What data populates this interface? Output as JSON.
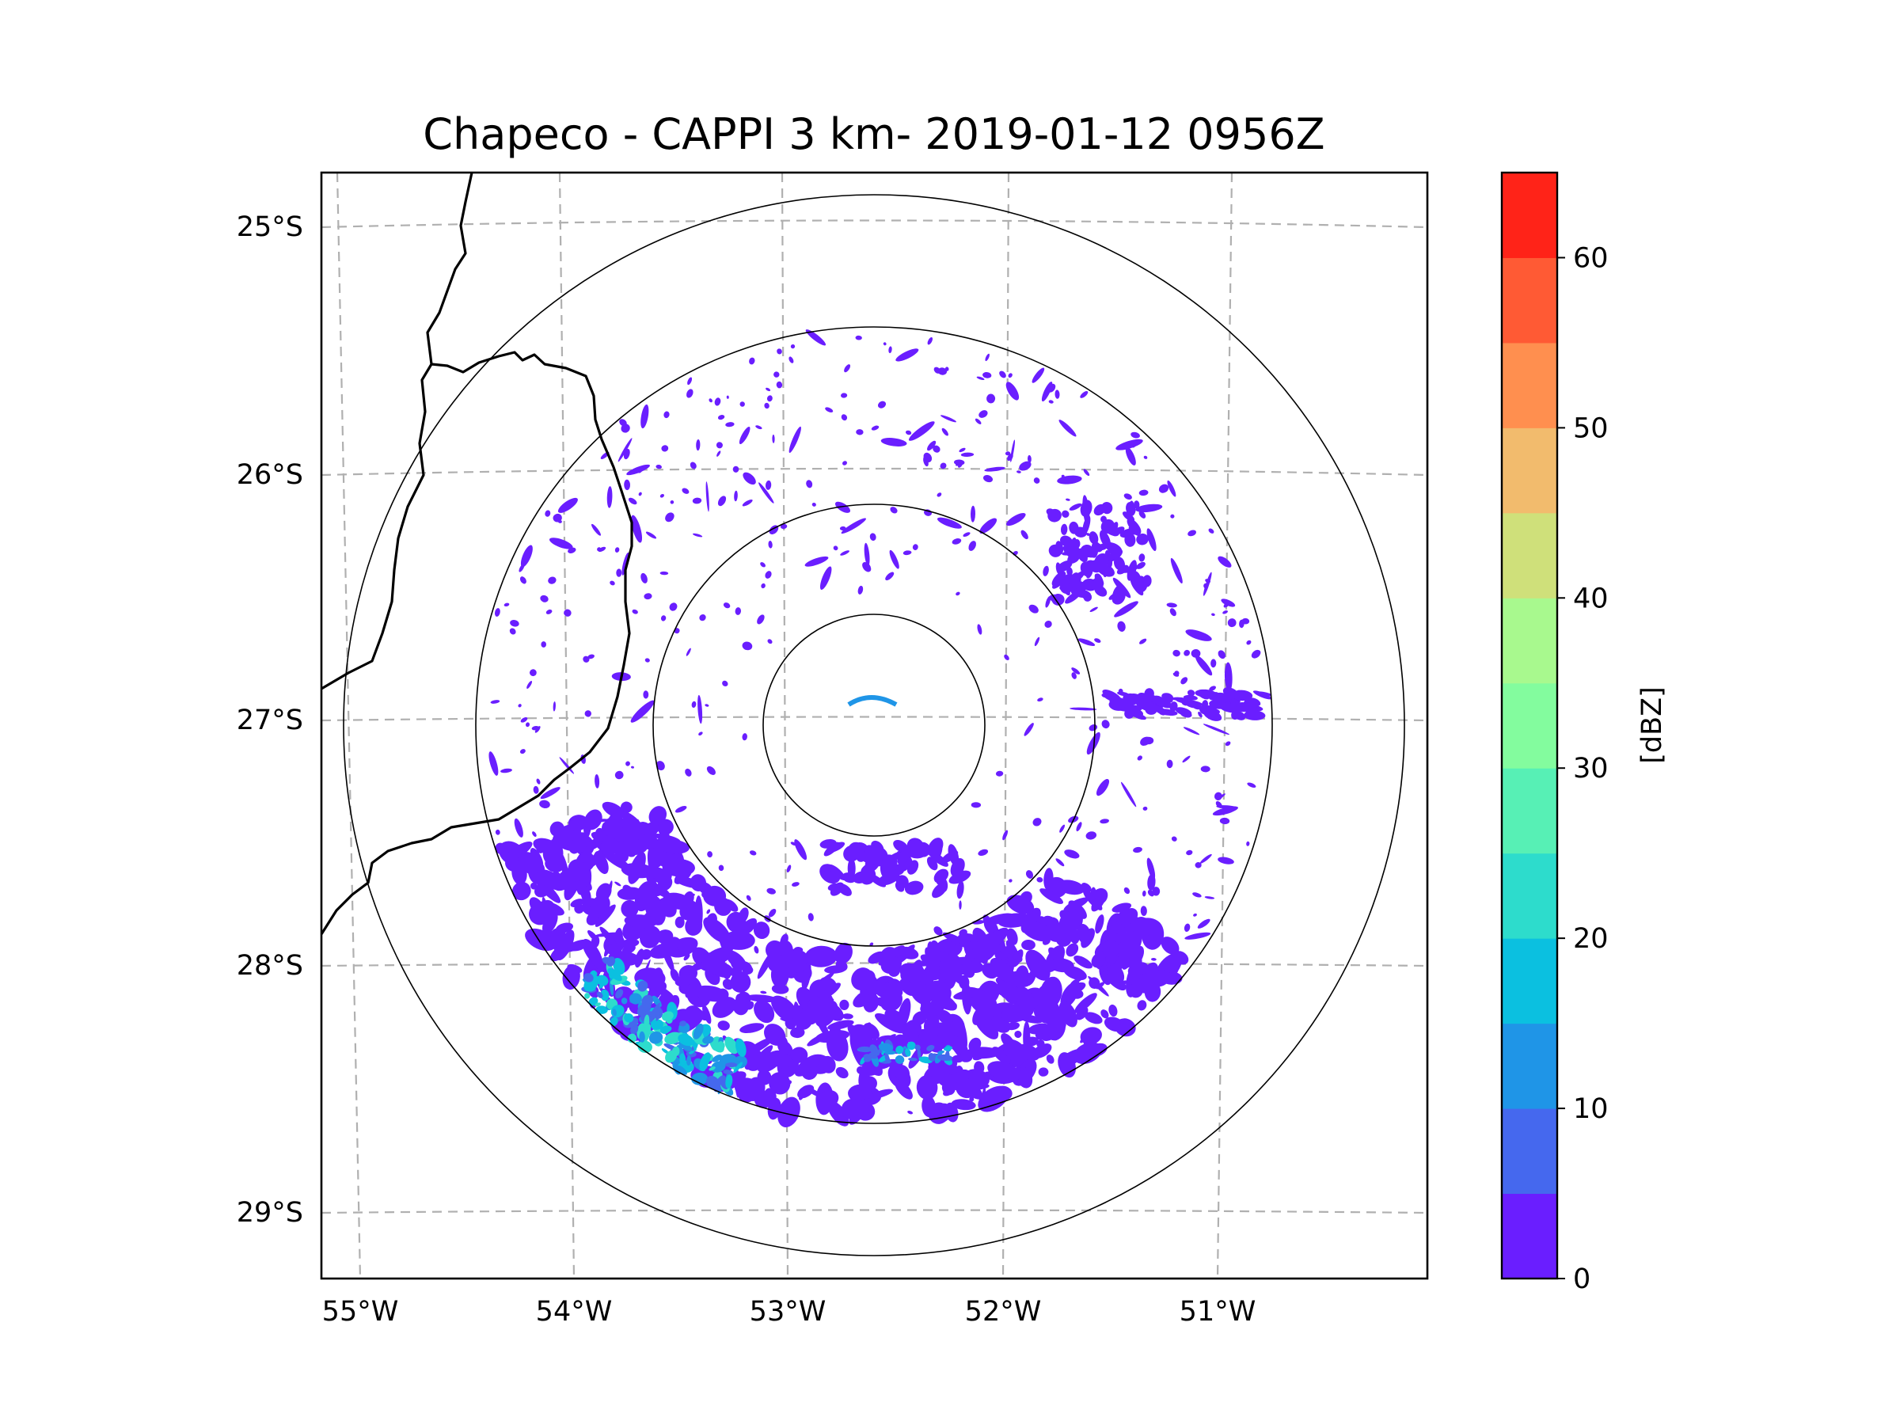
{
  "title": "Chapeco - CAPPI 3 km- 2019-01-12 0956Z",
  "chart_data": {
    "type": "radar-ppi-map",
    "title": "Chapeco - CAPPI 3 km- 2019-01-12 0956Z",
    "radar_site": "Chapeco",
    "product": "CAPPI 3 km",
    "datetime": "2019-01-12 0956Z",
    "lat_ticks": [
      "25°S",
      "26°S",
      "27°S",
      "28°S",
      "29°S"
    ],
    "lon_ticks": [
      "55°W",
      "54°W",
      "53°W",
      "52°W",
      "51°W"
    ],
    "lat_range": [
      -29.3,
      -24.8
    ],
    "lon_range": [
      -55.2,
      -50.0
    ],
    "range_rings_km": [
      50,
      100,
      200,
      250
    ],
    "grid": true,
    "colorbar": {
      "label": "[dBZ]",
      "ticks": [
        0,
        10,
        20,
        30,
        40,
        50,
        60
      ],
      "bounds": [
        0,
        5,
        10,
        15,
        20,
        25,
        30,
        35,
        40,
        45,
        50,
        55,
        60,
        65
      ],
      "colors": [
        "#6a1eff",
        "#4568ee",
        "#1f95e7",
        "#0bc0e0",
        "#2ddccc",
        "#57f0b5",
        "#83fc9e",
        "#a8f98e",
        "#cfe07a",
        "#f2bb6d",
        "#ff8f4f",
        "#ff5a34",
        "#ff2318"
      ]
    }
  }
}
